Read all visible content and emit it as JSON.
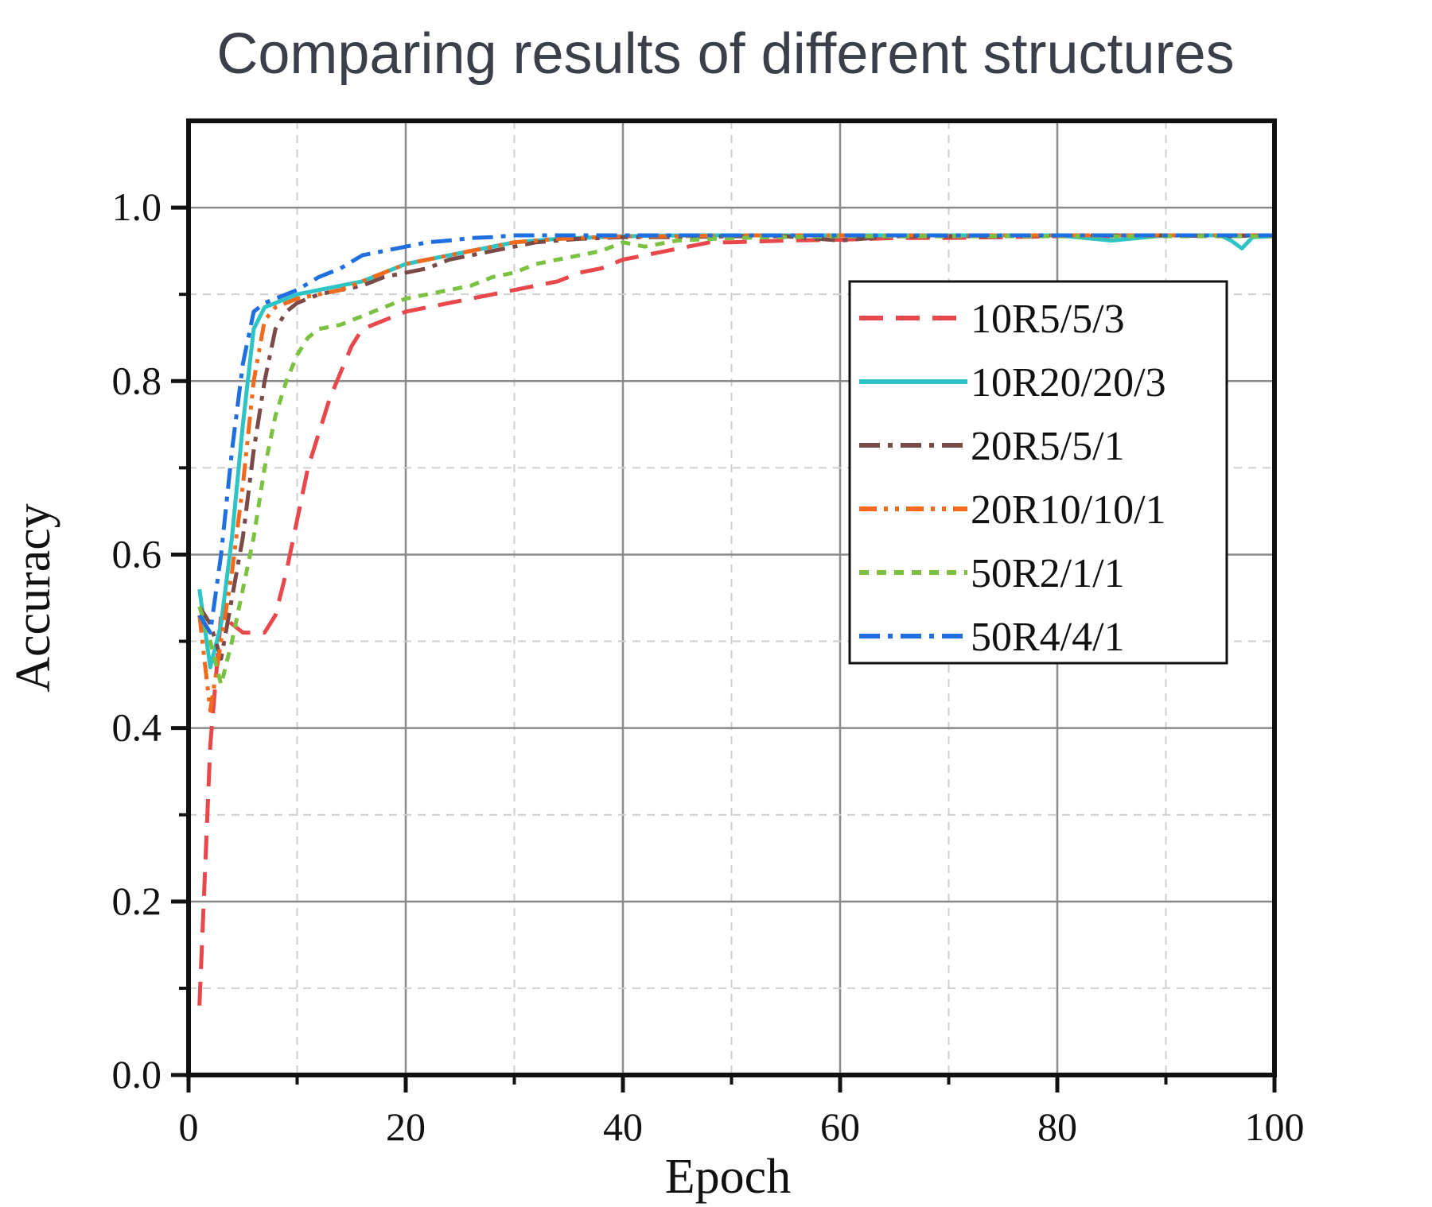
{
  "chart_data": {
    "type": "line",
    "title": "Comparing results of different structures",
    "xlabel": "Epoch",
    "ylabel": "Accuracy",
    "xlim": [
      0,
      100
    ],
    "ylim": [
      0,
      1.1
    ],
    "xticks": [
      0,
      20,
      40,
      60,
      80,
      100
    ],
    "yticks": [
      0.0,
      0.2,
      0.4,
      0.6,
      0.8,
      1.0
    ],
    "ytick_labels": [
      "0.0",
      "0.2",
      "0.4",
      "0.6",
      "0.8",
      "1.0"
    ],
    "grid": true,
    "legend_position": "right, upper-middle",
    "series": [
      {
        "name": "10R5/5/3",
        "color": "#e8474b",
        "style": "dash",
        "x": [
          1,
          2,
          3,
          4,
          5,
          6,
          7,
          8,
          9,
          10,
          11,
          12,
          13,
          14,
          15,
          16,
          18,
          20,
          22,
          24,
          26,
          28,
          30,
          32,
          34,
          36,
          38,
          40,
          42,
          44,
          46,
          48,
          50,
          55,
          60,
          65,
          70,
          75,
          80,
          85,
          90,
          95,
          100
        ],
        "values": [
          0.08,
          0.38,
          0.53,
          0.52,
          0.51,
          0.51,
          0.51,
          0.53,
          0.58,
          0.64,
          0.7,
          0.74,
          0.78,
          0.81,
          0.84,
          0.86,
          0.87,
          0.88,
          0.885,
          0.89,
          0.895,
          0.9,
          0.905,
          0.91,
          0.915,
          0.925,
          0.93,
          0.94,
          0.945,
          0.95,
          0.955,
          0.96,
          0.96,
          0.962,
          0.963,
          0.965,
          0.965,
          0.966,
          0.967,
          0.967,
          0.968,
          0.968,
          0.968
        ]
      },
      {
        "name": "10R20/20/3",
        "color": "#2cc4c4",
        "style": "solid",
        "x": [
          1,
          2,
          3,
          4,
          5,
          6,
          7,
          8,
          10,
          12,
          14,
          16,
          18,
          20,
          22,
          24,
          26,
          28,
          30,
          32,
          34,
          36,
          38,
          40,
          45,
          50,
          55,
          60,
          65,
          70,
          75,
          80,
          85,
          90,
          95,
          96,
          97,
          98,
          100
        ],
        "values": [
          0.56,
          0.47,
          0.52,
          0.62,
          0.75,
          0.86,
          0.885,
          0.89,
          0.9,
          0.905,
          0.91,
          0.915,
          0.925,
          0.935,
          0.94,
          0.945,
          0.95,
          0.955,
          0.96,
          0.962,
          0.964,
          0.965,
          0.966,
          0.967,
          0.968,
          0.968,
          0.968,
          0.968,
          0.968,
          0.968,
          0.968,
          0.968,
          0.962,
          0.968,
          0.968,
          0.962,
          0.953,
          0.966,
          0.967
        ]
      },
      {
        "name": "20R5/5/1",
        "color": "#7a4a48",
        "style": "dashdot",
        "x": [
          1,
          2,
          3,
          4,
          5,
          6,
          7,
          8,
          9,
          10,
          12,
          14,
          16,
          18,
          20,
          22,
          24,
          26,
          28,
          30,
          32,
          34,
          36,
          38,
          40,
          45,
          50,
          55,
          60,
          65,
          70,
          75,
          80,
          85,
          90,
          95,
          100
        ],
        "values": [
          0.54,
          0.52,
          0.48,
          0.55,
          0.62,
          0.72,
          0.8,
          0.86,
          0.88,
          0.89,
          0.9,
          0.905,
          0.91,
          0.92,
          0.925,
          0.93,
          0.94,
          0.945,
          0.95,
          0.955,
          0.96,
          0.962,
          0.964,
          0.965,
          0.966,
          0.966,
          0.967,
          0.967,
          0.962,
          0.967,
          0.967,
          0.967,
          0.968,
          0.968,
          0.968,
          0.967,
          0.968
        ]
      },
      {
        "name": "20R10/10/1",
        "color": "#f26b1d",
        "style": "dashdotdot",
        "x": [
          1,
          2,
          3,
          4,
          5,
          6,
          7,
          8,
          10,
          12,
          14,
          16,
          18,
          20,
          22,
          24,
          26,
          28,
          30,
          32,
          34,
          36,
          38,
          40,
          45,
          50,
          55,
          60,
          65,
          70,
          75,
          80,
          85,
          90,
          95,
          100
        ],
        "values": [
          0.53,
          0.42,
          0.5,
          0.58,
          0.68,
          0.8,
          0.87,
          0.885,
          0.895,
          0.9,
          0.905,
          0.915,
          0.925,
          0.935,
          0.94,
          0.945,
          0.95,
          0.955,
          0.96,
          0.962,
          0.964,
          0.965,
          0.966,
          0.967,
          0.967,
          0.968,
          0.968,
          0.968,
          0.968,
          0.968,
          0.968,
          0.968,
          0.968,
          0.968,
          0.968,
          0.968
        ]
      },
      {
        "name": "50R2/1/1",
        "color": "#7cc242",
        "style": "dot",
        "x": [
          1,
          2,
          3,
          4,
          5,
          6,
          7,
          8,
          9,
          10,
          11,
          12,
          14,
          16,
          18,
          20,
          22,
          24,
          26,
          28,
          30,
          32,
          34,
          36,
          38,
          40,
          42,
          45,
          50,
          55,
          60,
          65,
          70,
          75,
          80,
          85,
          90,
          95,
          100
        ],
        "values": [
          0.54,
          0.5,
          0.45,
          0.5,
          0.56,
          0.62,
          0.7,
          0.76,
          0.8,
          0.83,
          0.85,
          0.86,
          0.865,
          0.875,
          0.885,
          0.895,
          0.9,
          0.905,
          0.91,
          0.92,
          0.925,
          0.935,
          0.94,
          0.945,
          0.95,
          0.96,
          0.955,
          0.962,
          0.965,
          0.966,
          0.967,
          0.967,
          0.967,
          0.967,
          0.967,
          0.967,
          0.967,
          0.967,
          0.967
        ]
      },
      {
        "name": "50R4/4/1",
        "color": "#1f6fe0",
        "style": "dashdot",
        "x": [
          1,
          2,
          3,
          4,
          5,
          6,
          7,
          8,
          10,
          12,
          14,
          16,
          18,
          20,
          22,
          24,
          26,
          28,
          30,
          32,
          34,
          36,
          38,
          40,
          45,
          50,
          55,
          60,
          65,
          70,
          75,
          80,
          85,
          90,
          95,
          100
        ],
        "values": [
          0.53,
          0.51,
          0.6,
          0.72,
          0.82,
          0.88,
          0.89,
          0.895,
          0.905,
          0.92,
          0.93,
          0.945,
          0.95,
          0.955,
          0.96,
          0.962,
          0.965,
          0.966,
          0.968,
          0.968,
          0.968,
          0.968,
          0.968,
          0.968,
          0.968,
          0.968,
          0.968,
          0.968,
          0.968,
          0.968,
          0.968,
          0.968,
          0.968,
          0.968,
          0.968,
          0.968
        ]
      }
    ]
  }
}
